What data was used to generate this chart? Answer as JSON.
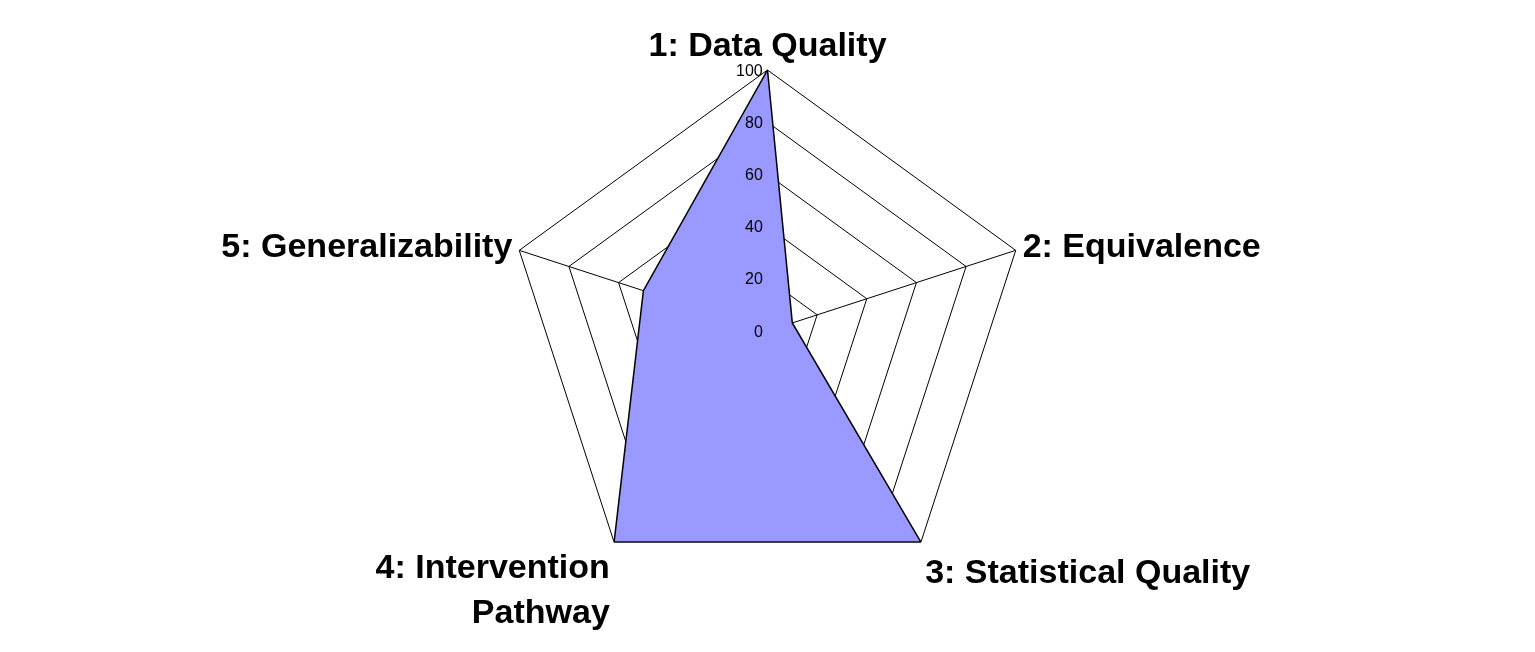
{
  "chart_data": {
    "type": "radar",
    "categories": [
      "1: Data Quality",
      "2: Equivalence",
      "3: Statistical Quality",
      "4: Intervention\nPathway",
      "5: Generalizability"
    ],
    "series": [
      {
        "color": "#9999ff",
        "values": [
          100,
          10,
          100,
          100,
          50
        ]
      }
    ],
    "ylim": [
      0,
      100
    ],
    "yticks": [
      0,
      20,
      40,
      60,
      80,
      100
    ],
    "grid": true,
    "marker": "none"
  }
}
